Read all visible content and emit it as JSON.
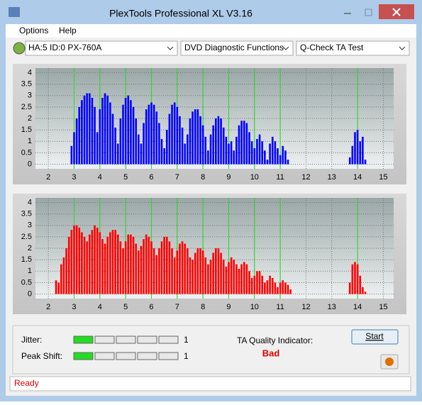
{
  "window": {
    "title": "PlexTools Professional XL V3.16"
  },
  "menu": [
    "Options",
    "Help"
  ],
  "toolbar": {
    "drive": "HA:5 ID:0  PX-760A",
    "function": "DVD Diagnostic Functions",
    "test": "Q-Check TA Test"
  },
  "chart_data": [
    {
      "type": "bar",
      "color": "#0000ff",
      "xlim": [
        1.5,
        15.4
      ],
      "ylim": [
        -0.2,
        4.2
      ],
      "xticks": [
        2,
        3,
        4,
        5,
        6,
        7,
        8,
        9,
        10,
        11,
        12,
        13,
        14,
        15
      ],
      "yticks": [
        0,
        0.5,
        1,
        1.5,
        2,
        2.5,
        3,
        3.5,
        4
      ],
      "grid": true,
      "reference_lines": [
        3,
        4,
        5,
        6,
        7,
        8,
        9,
        10,
        11,
        14
      ],
      "reference_color": "#22dd22",
      "x": [
        2.9,
        3.0,
        3.1,
        3.2,
        3.3,
        3.4,
        3.5,
        3.6,
        3.7,
        3.8,
        3.9,
        4.0,
        4.1,
        4.2,
        4.3,
        4.4,
        4.5,
        4.6,
        4.7,
        4.8,
        4.9,
        5.0,
        5.1,
        5.2,
        5.3,
        5.4,
        5.5,
        5.6,
        5.7,
        5.8,
        5.9,
        6.0,
        6.1,
        6.2,
        6.3,
        6.4,
        6.5,
        6.6,
        6.7,
        6.8,
        6.9,
        7.0,
        7.1,
        7.2,
        7.3,
        7.4,
        7.5,
        7.6,
        7.7,
        7.8,
        7.9,
        8.0,
        8.1,
        8.2,
        8.3,
        8.4,
        8.5,
        8.6,
        8.7,
        8.8,
        8.9,
        9.0,
        9.1,
        9.2,
        9.3,
        9.4,
        9.5,
        9.6,
        9.7,
        9.8,
        9.9,
        10.0,
        10.1,
        10.2,
        10.3,
        10.4,
        10.5,
        10.6,
        10.7,
        10.8,
        10.9,
        11.0,
        11.1,
        11.2,
        11.3,
        13.7,
        13.8,
        13.9,
        14.0,
        14.1,
        14.2,
        14.3
      ],
      "values": [
        0.8,
        1.4,
        2.0,
        2.5,
        2.8,
        3.0,
        3.1,
        3.1,
        2.9,
        2.5,
        1.4,
        2.4,
        2.9,
        3.1,
        3.0,
        2.7,
        2.2,
        1.6,
        0.9,
        2.0,
        2.6,
        2.9,
        3.0,
        2.8,
        2.5,
        2.0,
        1.3,
        0.9,
        1.8,
        2.4,
        2.6,
        2.7,
        2.6,
        2.3,
        1.8,
        1.1,
        0.7,
        1.5,
        2.2,
        2.6,
        2.7,
        2.5,
        2.1,
        1.6,
        0.9,
        1.3,
        2.0,
        2.3,
        2.4,
        2.4,
        2.1,
        1.7,
        1.2,
        0.6,
        1.3,
        1.7,
        2.0,
        2.1,
        2.0,
        1.6,
        1.2,
        0.9,
        1.0,
        0.6,
        1.2,
        1.7,
        1.9,
        1.9,
        1.8,
        1.4,
        1.0,
        0.7,
        1.1,
        1.3,
        1.0,
        0.6,
        0.2,
        0.9,
        1.2,
        1.0,
        0.7,
        0.4,
        0.8,
        0.6,
        0.2,
        0.3,
        0.8,
        1.4,
        1.5,
        1.0,
        1.2,
        0.2
      ]
    },
    {
      "type": "bar",
      "color": "#ff0000",
      "xlim": [
        1.5,
        15.4
      ],
      "ylim": [
        -0.2,
        4.2
      ],
      "xticks": [
        2,
        3,
        4,
        5,
        6,
        7,
        8,
        9,
        10,
        11,
        12,
        13,
        14,
        15
      ],
      "yticks": [
        0,
        0.5,
        1,
        1.5,
        2,
        2.5,
        3,
        3.5,
        4
      ],
      "grid": true,
      "reference_lines": [
        3,
        4,
        5,
        6,
        7,
        8,
        9,
        10,
        11,
        14
      ],
      "reference_color": "#22dd22",
      "x": [
        2.3,
        2.4,
        2.5,
        2.6,
        2.7,
        2.8,
        2.9,
        3.0,
        3.1,
        3.2,
        3.3,
        3.4,
        3.5,
        3.6,
        3.7,
        3.8,
        3.9,
        4.0,
        4.1,
        4.2,
        4.3,
        4.4,
        4.5,
        4.6,
        4.7,
        4.8,
        4.9,
        5.0,
        5.1,
        5.2,
        5.3,
        5.4,
        5.5,
        5.6,
        5.7,
        5.8,
        5.9,
        6.0,
        6.1,
        6.2,
        6.3,
        6.4,
        6.5,
        6.6,
        6.7,
        6.8,
        6.9,
        7.0,
        7.1,
        7.2,
        7.3,
        7.4,
        7.5,
        7.6,
        7.7,
        7.8,
        7.9,
        8.0,
        8.1,
        8.2,
        8.3,
        8.4,
        8.5,
        8.6,
        8.7,
        8.8,
        8.9,
        9.0,
        9.1,
        9.2,
        9.3,
        9.4,
        9.5,
        9.6,
        9.7,
        9.8,
        9.9,
        10.0,
        10.1,
        10.2,
        10.3,
        10.4,
        10.5,
        10.6,
        10.7,
        10.8,
        10.9,
        11.0,
        11.1,
        11.2,
        11.3,
        11.4,
        13.7,
        13.8,
        13.9,
        14.0,
        14.1,
        14.2,
        14.3
      ],
      "values": [
        0.6,
        0.5,
        1.3,
        1.6,
        2.0,
        2.5,
        2.8,
        3.0,
        3.0,
        2.9,
        2.7,
        2.5,
        2.3,
        2.6,
        2.8,
        3.0,
        2.9,
        2.7,
        2.4,
        2.2,
        2.5,
        2.7,
        2.8,
        2.8,
        2.6,
        2.3,
        2.0,
        2.3,
        2.6,
        2.6,
        2.5,
        2.2,
        1.9,
        2.1,
        2.4,
        2.6,
        2.5,
        2.3,
        2.0,
        1.7,
        2.0,
        2.3,
        2.5,
        2.5,
        2.3,
        2.0,
        1.6,
        1.9,
        2.2,
        2.3,
        2.2,
        2.0,
        1.6,
        1.5,
        1.8,
        2.0,
        2.0,
        1.9,
        1.6,
        1.3,
        1.5,
        1.8,
        2.0,
        2.0,
        1.8,
        1.5,
        1.2,
        1.4,
        1.6,
        1.5,
        1.3,
        1.1,
        1.3,
        1.4,
        1.3,
        1.0,
        0.7,
        0.8,
        1.0,
        1.0,
        0.8,
        0.5,
        0.6,
        0.8,
        0.7,
        0.5,
        0.3,
        0.5,
        0.6,
        0.5,
        0.4,
        0.2,
        0.5,
        1.3,
        1.4,
        1.3,
        0.8,
        0.3,
        0.1
      ]
    }
  ],
  "results": {
    "jitter_label": "Jitter:",
    "jitter": 1,
    "peak_shift_label": "Peak Shift:",
    "peak_shift": 1,
    "quality_label": "TA Quality Indicator:",
    "quality": "Bad",
    "start": "Start"
  },
  "status": "Ready"
}
